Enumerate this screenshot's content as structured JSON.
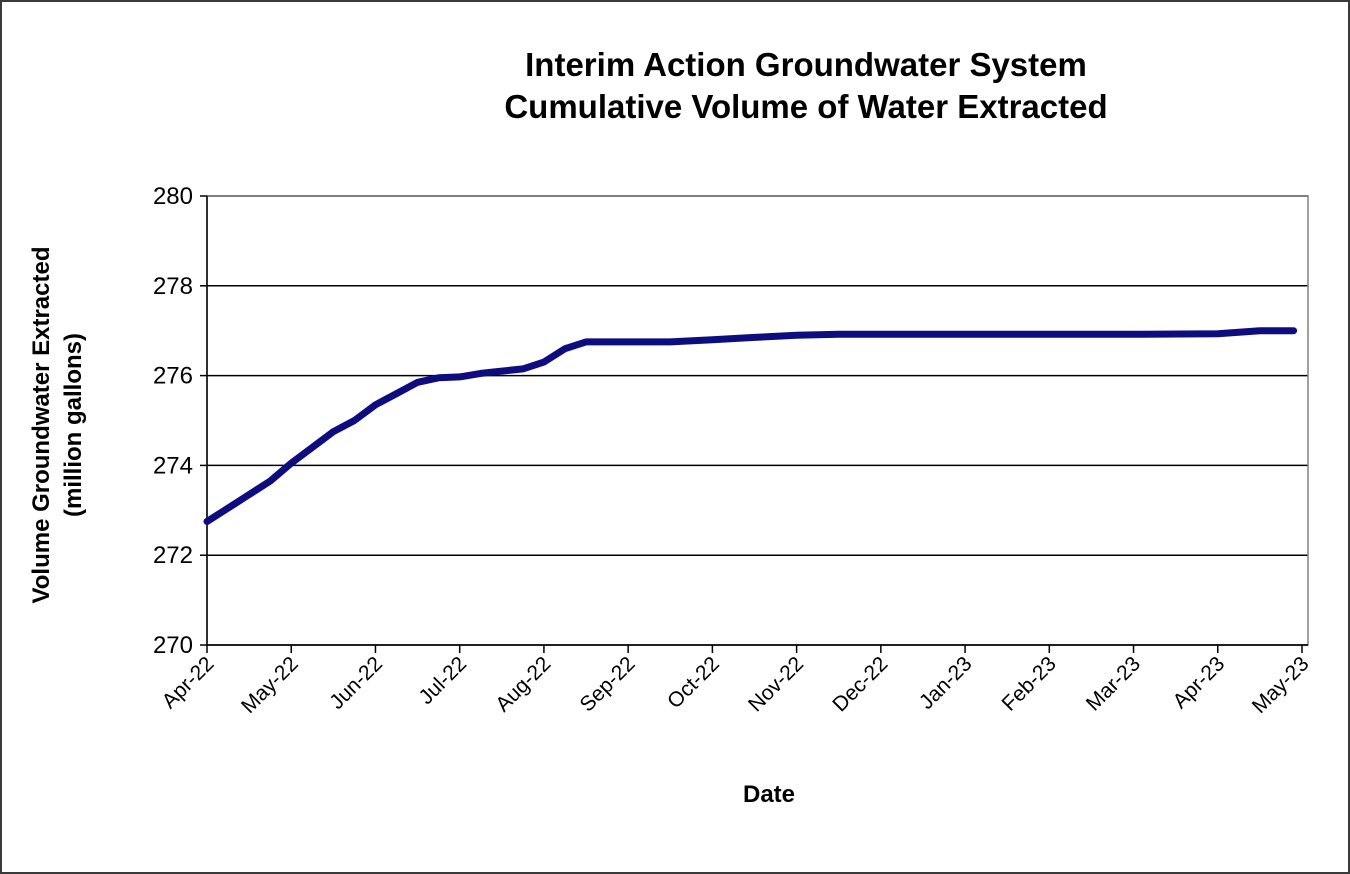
{
  "chart_data": {
    "type": "line",
    "title": "Interim Action Groundwater System",
    "subtitle": "Cumulative Volume of Water Extracted",
    "xlabel": "Date",
    "ylabel": "Volume Groundwater Extracted",
    "ylabel_unit": "(million gallons)",
    "ylim": [
      270,
      280
    ],
    "yticks": [
      "270",
      "272",
      "274",
      "276",
      "278",
      "280"
    ],
    "categories": [
      "Apr-22",
      "May-22",
      "Jun-22",
      "Jul-22",
      "Aug-22",
      "Sep-22",
      "Oct-22",
      "Nov-22",
      "Dec-22",
      "Jan-23",
      "Feb-23",
      "Mar-23",
      "Apr-23",
      "May-23"
    ],
    "grid": true,
    "legend": "none",
    "series": [
      {
        "color": "#0d0d80",
        "x": [
          0,
          0.25,
          0.5,
          0.75,
          1.0,
          1.25,
          1.5,
          1.75,
          2.0,
          2.25,
          2.5,
          2.75,
          3.0,
          3.25,
          3.5,
          3.75,
          4.0,
          4.25,
          4.5,
          4.75,
          5.0,
          5.5,
          6.0,
          6.5,
          7.0,
          7.5,
          8.0,
          9.0,
          10.0,
          11.0,
          12.0,
          12.5,
          12.9
        ],
        "values": [
          272.75,
          273.05,
          273.35,
          273.65,
          274.05,
          274.4,
          274.75,
          275.0,
          275.35,
          275.6,
          275.85,
          275.95,
          275.97,
          276.05,
          276.1,
          276.15,
          276.3,
          276.6,
          276.75,
          276.75,
          276.75,
          276.75,
          276.8,
          276.85,
          276.9,
          276.92,
          276.92,
          276.92,
          276.92,
          276.92,
          276.93,
          277.0,
          277.0
        ]
      }
    ]
  }
}
